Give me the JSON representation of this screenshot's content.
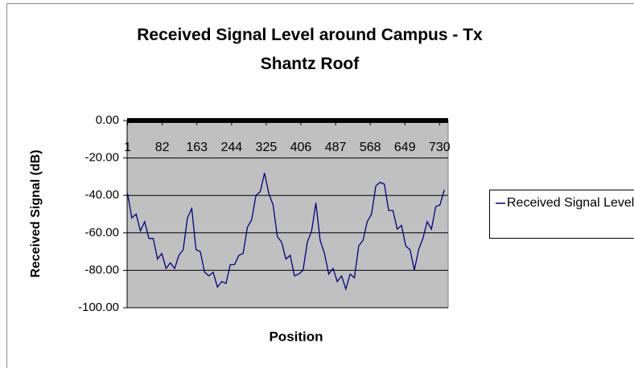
{
  "chart_data": {
    "type": "line",
    "title": "Received Signal Level around Campus - Tx Shantz Roof",
    "x_label": "Position",
    "y_label": "Received Signal (dB)",
    "x": [
      1,
      11,
      21,
      31,
      41,
      51,
      61,
      71,
      81,
      91,
      101,
      111,
      121,
      131,
      141,
      151,
      161,
      171,
      181,
      191,
      201,
      211,
      221,
      231,
      241,
      251,
      261,
      271,
      281,
      291,
      301,
      311,
      321,
      331,
      341,
      351,
      361,
      371,
      381,
      391,
      401,
      411,
      421,
      431,
      441,
      451,
      461,
      471,
      481,
      491,
      501,
      511,
      521,
      531,
      541,
      551,
      561,
      571,
      581,
      591,
      601,
      611,
      621,
      631,
      641,
      651,
      661,
      671,
      681,
      691,
      701,
      711,
      721,
      731,
      741
    ],
    "series": [
      {
        "name": "Received Signal Level",
        "color": "#000080",
        "values": [
          -39,
          -52,
          -50,
          -59,
          -54,
          -63,
          -63,
          -74,
          -71,
          -79,
          -76,
          -79,
          -72,
          -69,
          -52,
          -47,
          -69,
          -70,
          -81,
          -83,
          -81,
          -89,
          -86,
          -87,
          -77,
          -77,
          -72,
          -71,
          -57,
          -53,
          -40,
          -38,
          -28,
          -39,
          -45,
          -62,
          -65,
          -74,
          -72,
          -83,
          -82,
          -80,
          -65,
          -59,
          -44,
          -64,
          -71,
          -82,
          -79,
          -86,
          -83,
          -90,
          -82,
          -84,
          -67,
          -64,
          -54,
          -50,
          -35,
          -33,
          -34,
          -48,
          -48,
          -58,
          -56,
          -67,
          -69,
          -80,
          -69,
          -63,
          -54,
          -58,
          -46,
          -45,
          -37
        ]
      }
    ],
    "xlim": [
      0,
      750
    ],
    "xticks": [
      1,
      82,
      163,
      244,
      325,
      406,
      487,
      568,
      649,
      730
    ],
    "ylim": [
      -100,
      0
    ],
    "yticks": [
      {
        "value": 0,
        "label": "0.00"
      },
      {
        "value": -20,
        "label": "-20.00"
      },
      {
        "value": -40,
        "label": "-40.00"
      },
      {
        "value": -60,
        "label": "-60.00"
      },
      {
        "value": -80,
        "label": "-80.00"
      },
      {
        "value": -100,
        "label": "-100.00"
      }
    ],
    "grid": true
  }
}
